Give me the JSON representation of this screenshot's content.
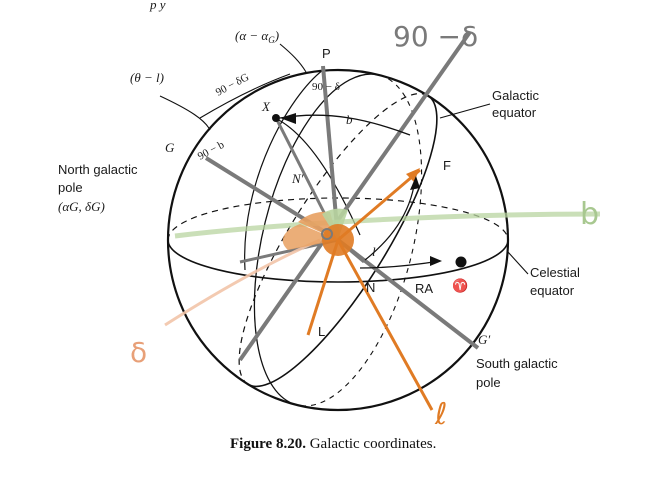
{
  "header_fragment": "p                                                      y",
  "labels": {
    "alpha_minus_alphaG": "(α − α",
    "alpha_G_sub": "G",
    "alpha_close": ")",
    "P": "P",
    "ninety_delta_hand": "90 −δ",
    "theta_minus_l": "(θ − l)",
    "ninety_deltaG": "90 − δG",
    "ninety_delta": "90 − δ",
    "X": "X",
    "b": "b",
    "galactic_equator_1": "Galactic",
    "galactic_equator_2": "equator",
    "G": "G",
    "ninety_b": "90 − b",
    "north_pole_1": "North galactic",
    "north_pole_2": "pole",
    "north_pole_3": "(αG, δG)",
    "N_prime": "N′",
    "F": "F",
    "b_hand": "b",
    "l": "l",
    "N": "N",
    "RA": "RA",
    "aries": "♈",
    "celestial_equator_1": "Celestial",
    "celestial_equator_2": "equator",
    "delta_hand": "δ",
    "L": "L",
    "G_prime": "G′",
    "south_pole_1": "South galactic",
    "south_pole_2": "pole",
    "l_hand": "ℓ"
  },
  "caption": {
    "number": "Figure 8.20.",
    "text": " Galactic coordinates."
  },
  "colors": {
    "sphere": "#111111",
    "gray_axis": "#7a7a7a",
    "orange": "#e07b24",
    "green": "#b8d4a0",
    "pink": "#f2c4a8"
  }
}
